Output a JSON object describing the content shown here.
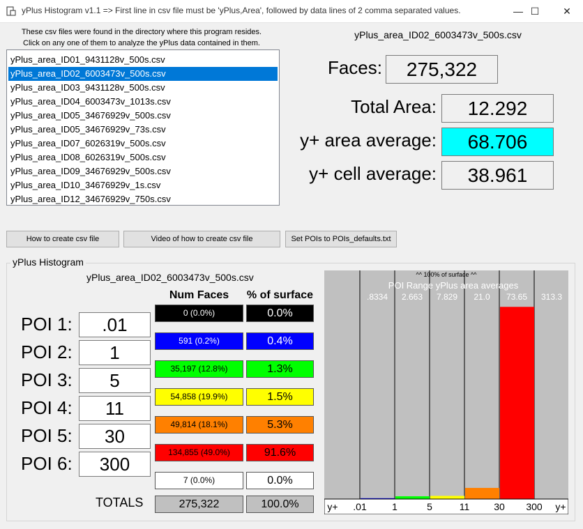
{
  "window": {
    "title": "yPlus Histogram v1.1 => First line in csv file must be 'yPlus,Area', followed by data lines of 2 comma separated values.",
    "minimize": "—",
    "maximize": "☐",
    "close": "✕"
  },
  "files": {
    "info_line1": "These csv files were found in the directory where this program resides.",
    "info_line2": "Click on any one of them to analyze the yPlus data contained in them.",
    "items": [
      "yPlus_area_ID01_9431128v_500s.csv",
      "yPlus_area_ID02_6003473v_500s.csv",
      "yPlus_area_ID03_9431128v_500s.csv",
      "yPlus_area_ID04_6003473v_1013s.csv",
      "yPlus_area_ID05_34676929v_500s.csv",
      "yPlus_area_ID05_34676929v_73s.csv",
      "yPlus_area_ID07_6026319v_500s.csv",
      "yPlus_area_ID08_6026319v_500s.csv",
      "yPlus_area_ID09_34676929v_500s.csv",
      "yPlus_area_ID10_34676929v_1s.csv",
      "yPlus_area_ID12_34676929v_750s.csv"
    ],
    "selected_index": 1
  },
  "summary": {
    "current_file": "yPlus_area_ID02_6003473v_500s.csv",
    "faces_label": "Faces:",
    "faces_value": "275,322",
    "total_area_label": "Total Area:",
    "total_area_value": "12.292",
    "area_avg_label": "y+ area average:",
    "area_avg_value": "68.706",
    "area_avg_color": "#00ffff",
    "cell_avg_label": "y+ cell average:",
    "cell_avg_value": "38.961"
  },
  "buttons": {
    "how_to": "How to create csv file",
    "video": "Video of how to create csv file",
    "set_pois": "Set POIs to POIs_defaults.txt"
  },
  "histogram": {
    "group_title": "yPlus Histogram",
    "file": "yPlus_area_ID02_6003473v_500s.csv",
    "col_num_faces": "Num Faces",
    "col_pct": "% of surface",
    "pois": [
      {
        "label": "POI 1:",
        "value": ".01"
      },
      {
        "label": "POI 2:",
        "value": "1"
      },
      {
        "label": "POI 3:",
        "value": "5"
      },
      {
        "label": "POI 4:",
        "value": "11"
      },
      {
        "label": "POI 5:",
        "value": "30"
      },
      {
        "label": "POI 6:",
        "value": "300"
      }
    ],
    "rows": [
      {
        "count": "0 (0.0%)",
        "pct": "0.0%",
        "bg": "#000000",
        "fg": "#ffffff"
      },
      {
        "count": "591 (0.2%)",
        "pct": "0.4%",
        "bg": "#0000ff",
        "fg": "#ffffff"
      },
      {
        "count": "35,197 (12.8%)",
        "pct": "1.3%",
        "bg": "#00ff00",
        "fg": "#000000"
      },
      {
        "count": "54,858 (19.9%)",
        "pct": "1.5%",
        "bg": "#ffff00",
        "fg": "#000000"
      },
      {
        "count": "49,814 (18.1%)",
        "pct": "5.3%",
        "bg": "#ff8000",
        "fg": "#000000"
      },
      {
        "count": "134,855 (49.0%)",
        "pct": "91.6%",
        "bg": "#ff0000",
        "fg": "#000000"
      },
      {
        "count": "7 (0.0%)",
        "pct": "0.0%",
        "bg": "#ffffff",
        "fg": "#000000"
      }
    ],
    "totals_label": "TOTALS",
    "totals_count": "275,322",
    "totals_pct": "100.0%"
  },
  "chart_data": {
    "type": "bar",
    "top_note": "^^ 100% of surface ^^",
    "subtitle": "POI Range yPlus area averages",
    "range_averages": [
      ".8334",
      "2.663",
      "7.829",
      "21.0",
      "73.65",
      "313.3"
    ],
    "x_tick_labels": [
      "y+",
      ".01",
      "1",
      "5",
      "11",
      "30",
      "300",
      "y+"
    ],
    "categories": [
      ".01-1",
      "1-5",
      "5-11",
      "11-30",
      "30-300",
      ">300"
    ],
    "values": [
      0.4,
      1.3,
      1.5,
      5.3,
      91.6,
      0.0
    ],
    "colors": [
      "#0000ff",
      "#00ff00",
      "#ffff00",
      "#ff8000",
      "#ff0000",
      "#ffffff"
    ],
    "ylim": [
      0,
      100
    ]
  }
}
